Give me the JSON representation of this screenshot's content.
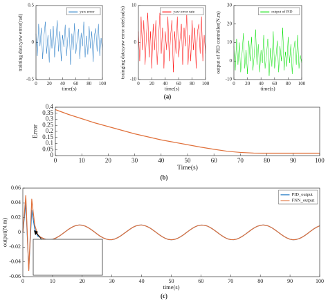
{
  "chart_data": [
    {
      "type": "line",
      "caption": "(a)",
      "xlabel": "time(s)",
      "ylabel": "training data:yaw error(rad)",
      "xlim": [
        0,
        100
      ],
      "xticks": [
        0,
        20,
        40,
        60,
        80,
        100
      ],
      "ylim": [
        -0.5,
        0.5
      ],
      "yticks": [
        -0.5,
        0,
        0.5
      ],
      "x": [
        0,
        2,
        4,
        6,
        8,
        10,
        12,
        14,
        16,
        18,
        20,
        22,
        24,
        26,
        28,
        30,
        32,
        34,
        36,
        38,
        40,
        42,
        44,
        46,
        48,
        50,
        52,
        54,
        56,
        58,
        60,
        62,
        64,
        66,
        68,
        70,
        72,
        74,
        76,
        78,
        80,
        82,
        84,
        86,
        88,
        90,
        92,
        94,
        96,
        98,
        100
      ],
      "series": [
        {
          "name": "yaw error",
          "color": "#1f77c4",
          "values": [
            0.12,
            -0.18,
            0.25,
            -0.05,
            0.2,
            -0.22,
            0.08,
            0.28,
            -0.15,
            0.1,
            -0.27,
            0.18,
            -0.08,
            0.22,
            -0.2,
            0.05,
            0.3,
            -0.12,
            0.15,
            -0.25,
            0.1,
            -0.06,
            0.24,
            -0.18,
            0.07,
            0.2,
            -0.3,
            0.12,
            -0.1,
            0.26,
            -0.15,
            0.04,
            0.18,
            -0.22,
            0.13,
            -0.05,
            0.28,
            -0.2,
            0.09,
            -0.16,
            0.22,
            -0.08,
            0.15,
            -0.26,
            0.1,
            0.19,
            -0.12,
            0.25,
            -0.18,
            0.06,
            -0.1
          ]
        }
      ]
    },
    {
      "type": "line",
      "xlabel": "time(s)",
      "ylabel": "trainging data:yaw error rate(rad/s)",
      "xlim": [
        0,
        100
      ],
      "xticks": [
        0,
        20,
        40,
        60,
        80,
        100
      ],
      "ylim": [
        -10,
        10
      ],
      "yticks": [
        -10,
        0,
        10
      ],
      "x": [
        0,
        2,
        4,
        6,
        8,
        10,
        12,
        14,
        16,
        18,
        20,
        22,
        24,
        26,
        28,
        30,
        32,
        34,
        36,
        38,
        40,
        42,
        44,
        46,
        48,
        50,
        52,
        54,
        56,
        58,
        60,
        62,
        64,
        66,
        68,
        70,
        72,
        74,
        76,
        78,
        80,
        82,
        84,
        86,
        88,
        90,
        92,
        94,
        96,
        98,
        100
      ],
      "series": [
        {
          "name": "yaw error rate",
          "color": "#ff0000",
          "values": [
            3,
            -5,
            7,
            -2,
            6,
            -6,
            2,
            8,
            -4,
            3,
            -7,
            5,
            -2,
            6,
            -6,
            1,
            8,
            -3,
            4,
            -7,
            3,
            -2,
            7,
            -5,
            2,
            6,
            -8,
            3,
            -3,
            7,
            -4,
            1,
            5,
            -6,
            4,
            -1,
            8,
            -6,
            2,
            -5,
            6,
            -2,
            4,
            -7,
            3,
            5,
            -3,
            7,
            -5,
            2,
            -3
          ]
        }
      ]
    },
    {
      "type": "line",
      "xlabel": "time(s)",
      "ylabel": "output of PID controller(N.m)",
      "xlim": [
        0,
        100
      ],
      "xticks": [
        0,
        20,
        40,
        60,
        80,
        100
      ],
      "ylim": [
        -10,
        30
      ],
      "yticks": [
        -10,
        0,
        10,
        20,
        30
      ],
      "x": [
        0,
        2,
        4,
        6,
        8,
        10,
        12,
        14,
        16,
        18,
        20,
        22,
        24,
        26,
        28,
        30,
        32,
        34,
        36,
        38,
        40,
        42,
        44,
        46,
        48,
        50,
        52,
        54,
        56,
        58,
        60,
        62,
        64,
        66,
        68,
        70,
        72,
        74,
        76,
        78,
        80,
        82,
        84,
        86,
        88,
        90,
        92,
        94,
        96,
        98,
        100
      ],
      "series": [
        {
          "name": "output of PID",
          "color": "#00e000",
          "values": [
            8,
            -5,
            12,
            -2,
            10,
            -6,
            4,
            15,
            -4,
            6,
            -7,
            11,
            0,
            13,
            -5,
            3,
            17,
            -2,
            9,
            -6,
            6,
            -1,
            14,
            -4,
            3,
            12,
            -8,
            7,
            -3,
            16,
            -4,
            2,
            11,
            -6,
            8,
            0,
            18,
            -5,
            5,
            -3,
            13,
            -1,
            9,
            -7,
            5,
            11,
            -2,
            14,
            -4,
            3,
            -1
          ]
        }
      ]
    },
    {
      "type": "line",
      "caption": "(b)",
      "xlabel": "Time(s)",
      "ylabel": "Error",
      "xlim": [
        0,
        100
      ],
      "xticks": [
        0,
        10,
        20,
        30,
        40,
        50,
        60,
        70,
        80,
        90,
        100
      ],
      "ylim": [
        0,
        0.4
      ],
      "yticks": [
        0,
        0.05,
        0.1,
        0.15,
        0.2,
        0.25,
        0.3,
        0.35,
        0.4
      ],
      "x": [
        0,
        5,
        10,
        15,
        20,
        25,
        30,
        35,
        40,
        45,
        50,
        55,
        60,
        65,
        70,
        75,
        80,
        85,
        90,
        95,
        100
      ],
      "series": [
        {
          "name": null,
          "color": "#e0703a",
          "values": [
            0.38,
            0.34,
            0.305,
            0.27,
            0.24,
            0.21,
            0.18,
            0.155,
            0.13,
            0.11,
            0.09,
            0.07,
            0.052,
            0.036,
            0.026,
            0.021,
            0.02,
            0.02,
            0.02,
            0.02,
            0.02
          ]
        }
      ]
    },
    {
      "type": "line",
      "caption": "(c)",
      "xlabel": "time(s)",
      "ylabel": "output(N.m)",
      "xlim": [
        0,
        100
      ],
      "xticks": [
        0,
        10,
        20,
        30,
        40,
        50,
        60,
        70,
        80,
        90,
        100
      ],
      "ylim": [
        -0.06,
        0.06
      ],
      "yticks": [
        -0.06,
        -0.04,
        -0.02,
        0,
        0.02,
        0.04,
        0.06
      ],
      "x": [
        0,
        1,
        2,
        3,
        4,
        5,
        6,
        7,
        8,
        9,
        10,
        11,
        12,
        13,
        14,
        15,
        16,
        17,
        18,
        19,
        20,
        21,
        22,
        23,
        24,
        25,
        26,
        27,
        28,
        29,
        30,
        31,
        32,
        33,
        34,
        35,
        36,
        37,
        38,
        39,
        40,
        41,
        42,
        43,
        44,
        45,
        46,
        47,
        48,
        49,
        50,
        51,
        52,
        53,
        54,
        55,
        56,
        57,
        58,
        59,
        60,
        61,
        62,
        63,
        64,
        65,
        66,
        67,
        68,
        69,
        70,
        71,
        72,
        73,
        74,
        75,
        76,
        77,
        78,
        79,
        80,
        81,
        82,
        83,
        84,
        85,
        86,
        87,
        88,
        89,
        90,
        91,
        92,
        93,
        94,
        95,
        96,
        97,
        98,
        99,
        100
      ],
      "series": [
        {
          "name": "PID_output",
          "color": "#1f77c4",
          "values": [
            0,
            0.04,
            -0.05,
            0.03,
            0.005,
            -0.005,
            -0.0065,
            -0.0085,
            -0.0097,
            -0.01,
            -0.0094,
            -0.0079,
            -0.0057,
            -0.003,
            0,
            0.003,
            0.0057,
            0.0079,
            0.0094,
            0.01,
            0.0097,
            0.0085,
            0.0065,
            0.0039,
            0.0009,
            -0.0021,
            -0.005,
            -0.0073,
            -0.009,
            -0.0099,
            -0.0099,
            -0.0089,
            -0.0071,
            -0.0047,
            -0.0018,
            0.0012,
            0.0041,
            0.0067,
            0.0086,
            0.0097,
            0.01,
            0.0093,
            0.0077,
            0.0055,
            0.0027,
            -0.0003,
            -0.0033,
            -0.006,
            -0.0081,
            -0.0095,
            -0.01,
            -0.0096,
            -0.0083,
            -0.0062,
            -0.0036,
            -0.0006,
            0.0024,
            0.0052,
            0.0075,
            0.0092,
            0.0099,
            0.0098,
            0.0088,
            0.0069,
            0.0044,
            0.0015,
            -0.0015,
            -0.0044,
            -0.0069,
            -0.0088,
            -0.0098,
            -0.0099,
            -0.0092,
            -0.0075,
            -0.0052,
            -0.0024,
            0.0006,
            0.0036,
            0.0062,
            0.0083,
            0.0096,
            0.01,
            0.0095,
            0.0081,
            0.006,
            0.0033,
            0.0003,
            -0.0027,
            -0.0055,
            -0.0077,
            -0.0093,
            -0.01,
            -0.0097,
            -0.0086,
            -0.0067,
            -0.0042,
            -0.0013,
            0.0018,
            0.0047,
            0.0071,
            0.0089
          ]
        },
        {
          "name": "FNN_output",
          "color": "#e0703a",
          "values": [
            0,
            0.05,
            -0.052,
            0.045,
            0.01,
            -0.003,
            -0.0065,
            -0.0085,
            -0.0097,
            -0.01,
            -0.0094,
            -0.0079,
            -0.0057,
            -0.003,
            0,
            0.003,
            0.0057,
            0.0079,
            0.0094,
            0.01,
            0.0097,
            0.0085,
            0.0065,
            0.0039,
            0.0009,
            -0.0021,
            -0.005,
            -0.0073,
            -0.009,
            -0.0099,
            -0.0099,
            -0.0089,
            -0.0071,
            -0.0047,
            -0.0018,
            0.0012,
            0.0041,
            0.0067,
            0.0086,
            0.0097,
            0.01,
            0.0093,
            0.0077,
            0.0055,
            0.0027,
            -0.0003,
            -0.0033,
            -0.006,
            -0.0081,
            -0.0095,
            -0.01,
            -0.0096,
            -0.0083,
            -0.0062,
            -0.0036,
            -0.0006,
            0.0024,
            0.0052,
            0.0075,
            0.0092,
            0.0099,
            0.0098,
            0.0088,
            0.0069,
            0.0044,
            0.0015,
            -0.0015,
            -0.0044,
            -0.0069,
            -0.0088,
            -0.0098,
            -0.0099,
            -0.0092,
            -0.0075,
            -0.0052,
            -0.0024,
            0.0006,
            0.0036,
            0.0062,
            0.0083,
            0.0096,
            0.01,
            0.0095,
            0.0081,
            0.006,
            0.0033,
            0.0003,
            -0.0027,
            -0.0055,
            -0.0077,
            -0.0093,
            -0.01,
            -0.0097,
            -0.0086,
            -0.0067,
            -0.0042,
            -0.0013,
            0.0018,
            0.0047,
            0.0071,
            0.0089
          ]
        }
      ]
    }
  ]
}
